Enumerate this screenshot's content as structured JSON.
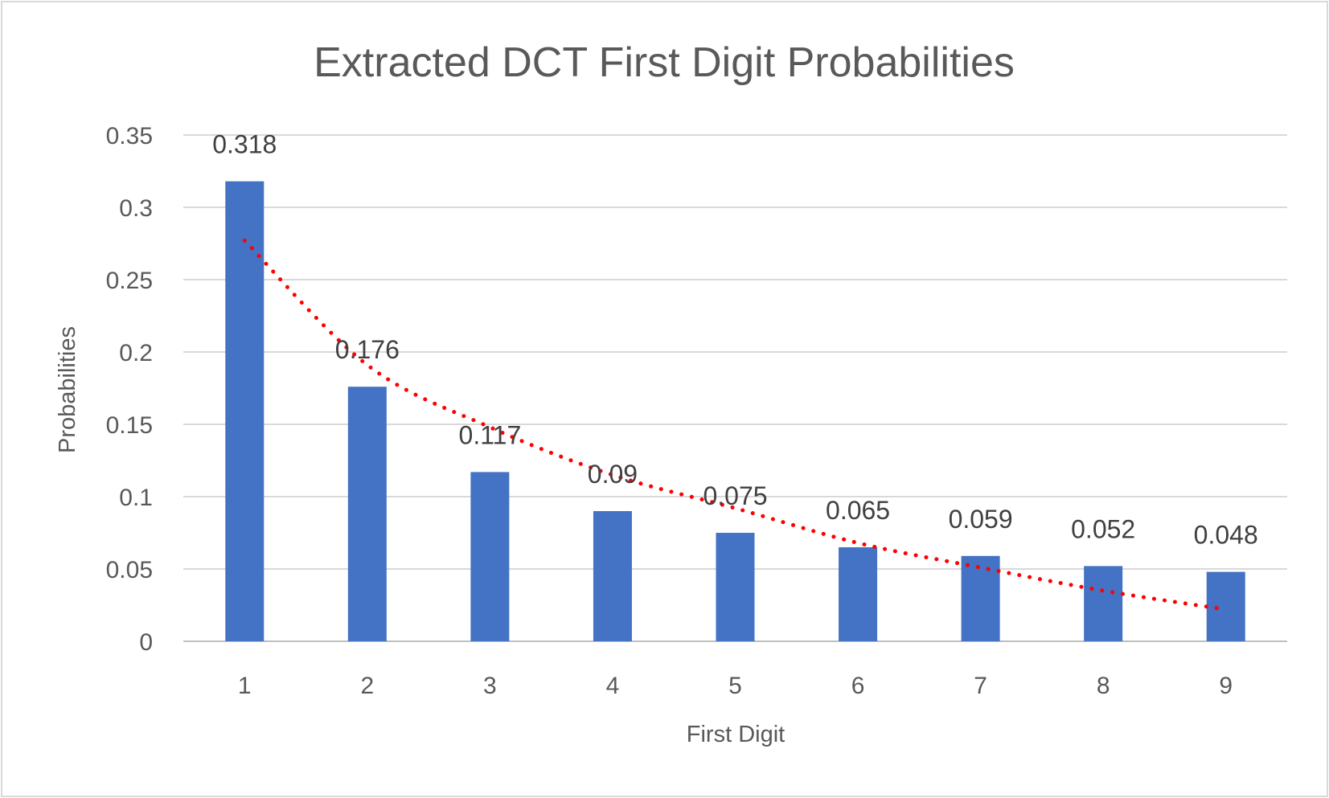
{
  "chart_data": {
    "type": "bar",
    "title": "Extracted DCT First Digit Probabilities",
    "xlabel": "First Digit",
    "ylabel": "Probabilities",
    "categories": [
      "1",
      "2",
      "3",
      "4",
      "5",
      "6",
      "7",
      "8",
      "9"
    ],
    "series": [
      {
        "values": [
          0.318,
          0.176,
          0.117,
          0.09,
          0.075,
          0.065,
          0.059,
          0.052,
          0.048
        ],
        "color": "#4472c4"
      }
    ],
    "data_labels": [
      "0.318",
      "0.176",
      "0.117",
      "0.09",
      "0.075",
      "0.065",
      "0.059",
      "0.052",
      "0.048"
    ],
    "trendline": {
      "style": "dotted",
      "color": "#ff0000",
      "values": [
        0.277,
        0.191,
        0.148,
        0.115,
        0.092,
        0.068,
        0.051,
        0.035,
        0.022
      ]
    },
    "ylim": [
      0,
      0.35
    ],
    "yticks": [
      "0",
      "0.05",
      "0.1",
      "0.15",
      "0.2",
      "0.25",
      "0.3",
      "0.35"
    ],
    "grid": true,
    "legend": "none"
  }
}
